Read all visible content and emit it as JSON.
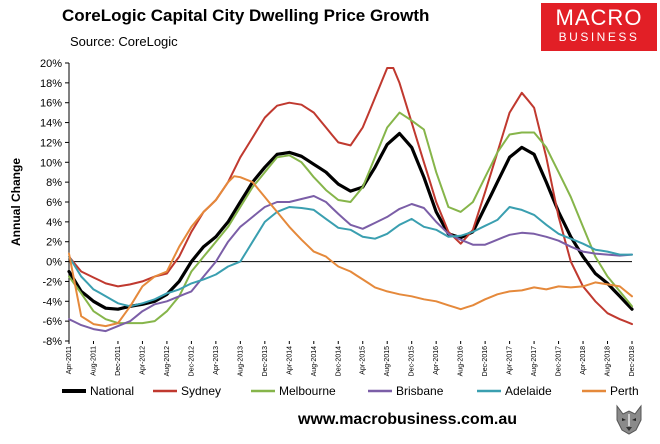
{
  "header": {
    "title": "CoreLogic Capital City Dwelling Price Growth",
    "subtitle": "Source: CoreLogic"
  },
  "logo": {
    "line1": "MACRO",
    "line2": "BUSINESS"
  },
  "footer": {
    "website": "www.macrobusiness.com.au"
  },
  "colors": {
    "National": "#000000",
    "Sydney": "#c0392f",
    "Melbourne": "#86b54a",
    "Brisbane": "#7b5ea7",
    "Adelaide": "#3a9fb0",
    "Perth": "#e5893b",
    "brand": "#e21f26"
  },
  "chart_data": {
    "type": "line",
    "title": "CoreLogic Capital City Dwelling Price Growth",
    "ylabel": "Annual Change",
    "xlabel": "",
    "ylim": [
      -8,
      20
    ],
    "yticks": [
      -8,
      -6,
      -4,
      -2,
      0,
      2,
      4,
      6,
      8,
      10,
      12,
      14,
      16,
      18,
      20
    ],
    "ytick_labels": [
      "-8%",
      "-6%",
      "-4%",
      "-2%",
      "0%",
      "2%",
      "4%",
      "6%",
      "8%",
      "10%",
      "12%",
      "14%",
      "16%",
      "18%",
      "20%"
    ],
    "x_start": "Apr-2011",
    "x_count": 93,
    "xticks": [
      {
        "i": 0,
        "label": "Apr-2011"
      },
      {
        "i": 4,
        "label": "Aug-2011"
      },
      {
        "i": 8,
        "label": "Dec-2011"
      },
      {
        "i": 12,
        "label": "Apr-2012"
      },
      {
        "i": 16,
        "label": "Aug-2012"
      },
      {
        "i": 20,
        "label": "Dec-2012"
      },
      {
        "i": 24,
        "label": "Apr-2013"
      },
      {
        "i": 28,
        "label": "Aug-2013"
      },
      {
        "i": 32,
        "label": "Dec-2013"
      },
      {
        "i": 36,
        "label": "Apr-2014"
      },
      {
        "i": 40,
        "label": "Aug-2014"
      },
      {
        "i": 44,
        "label": "Dec-2014"
      },
      {
        "i": 48,
        "label": "Apr-2015"
      },
      {
        "i": 52,
        "label": "Aug-2015"
      },
      {
        "i": 56,
        "label": "Dec-2015"
      },
      {
        "i": 60,
        "label": "Apr-2016"
      },
      {
        "i": 64,
        "label": "Aug-2016"
      },
      {
        "i": 68,
        "label": "Dec-2016"
      },
      {
        "i": 72,
        "label": "Apr-2017"
      },
      {
        "i": 76,
        "label": "Aug-2017"
      },
      {
        "i": 80,
        "label": "Dec-2017"
      },
      {
        "i": 84,
        "label": "Apr-2018"
      },
      {
        "i": 88,
        "label": "Aug-2018"
      },
      {
        "i": 92,
        "label": "Dec-2018"
      }
    ],
    "legend_position": "bottom",
    "series": [
      {
        "name": "National",
        "anchors": [
          [
            0,
            -1
          ],
          [
            2,
            -3
          ],
          [
            4,
            -4
          ],
          [
            6,
            -4.7
          ],
          [
            8,
            -4.8
          ],
          [
            10,
            -4.5
          ],
          [
            12,
            -4.3
          ],
          [
            14,
            -4
          ],
          [
            16,
            -3.3
          ],
          [
            18,
            -2
          ],
          [
            20,
            0
          ],
          [
            22,
            1.5
          ],
          [
            24,
            2.5
          ],
          [
            26,
            4
          ],
          [
            28,
            6
          ],
          [
            30,
            8
          ],
          [
            32,
            9.5
          ],
          [
            34,
            10.8
          ],
          [
            36,
            11
          ],
          [
            38,
            10.6
          ],
          [
            40,
            9.8
          ],
          [
            42,
            9
          ],
          [
            44,
            7.8
          ],
          [
            46,
            7.1
          ],
          [
            48,
            7.5
          ],
          [
            50,
            9.5
          ],
          [
            52,
            11.8
          ],
          [
            54,
            12.9
          ],
          [
            56,
            11.5
          ],
          [
            58,
            8.5
          ],
          [
            60,
            5
          ],
          [
            62,
            2.8
          ],
          [
            64,
            2.4
          ],
          [
            66,
            3
          ],
          [
            68,
            5.5
          ],
          [
            70,
            8
          ],
          [
            72,
            10.5
          ],
          [
            74,
            11.5
          ],
          [
            76,
            10.8
          ],
          [
            78,
            8
          ],
          [
            80,
            5
          ],
          [
            82,
            2.5
          ],
          [
            84,
            0.5
          ],
          [
            86,
            -1.2
          ],
          [
            88,
            -2.2
          ],
          [
            90,
            -3.5
          ],
          [
            92,
            -4.8
          ]
        ]
      },
      {
        "name": "Sydney",
        "anchors": [
          [
            0,
            0.5
          ],
          [
            2,
            -1
          ],
          [
            4,
            -1.6
          ],
          [
            6,
            -2.2
          ],
          [
            8,
            -2.5
          ],
          [
            10,
            -2.3
          ],
          [
            12,
            -2
          ],
          [
            14,
            -1.5
          ],
          [
            16,
            -1.2
          ],
          [
            18,
            0.5
          ],
          [
            20,
            3
          ],
          [
            22,
            5
          ],
          [
            24,
            6.2
          ],
          [
            26,
            8
          ],
          [
            28,
            10.5
          ],
          [
            30,
            12.5
          ],
          [
            32,
            14.5
          ],
          [
            34,
            15.7
          ],
          [
            36,
            16
          ],
          [
            38,
            15.8
          ],
          [
            40,
            15
          ],
          [
            42,
            13.5
          ],
          [
            44,
            12
          ],
          [
            46,
            11.7
          ],
          [
            48,
            13.5
          ],
          [
            50,
            16.5
          ],
          [
            52,
            19.5
          ],
          [
            53,
            19.5
          ],
          [
            54,
            18
          ],
          [
            56,
            14
          ],
          [
            58,
            10
          ],
          [
            60,
            6
          ],
          [
            62,
            3
          ],
          [
            64,
            1.8
          ],
          [
            66,
            3.2
          ],
          [
            68,
            7
          ],
          [
            70,
            11
          ],
          [
            72,
            15
          ],
          [
            74,
            17
          ],
          [
            76,
            15.5
          ],
          [
            78,
            10.5
          ],
          [
            80,
            4.5
          ],
          [
            82,
            0
          ],
          [
            84,
            -2.5
          ],
          [
            86,
            -4
          ],
          [
            88,
            -5.2
          ],
          [
            90,
            -5.8
          ],
          [
            92,
            -6.3
          ]
        ]
      },
      {
        "name": "Melbourne",
        "anchors": [
          [
            0,
            -1.5
          ],
          [
            2,
            -3.2
          ],
          [
            4,
            -5
          ],
          [
            6,
            -5.8
          ],
          [
            8,
            -6.2
          ],
          [
            10,
            -6.2
          ],
          [
            12,
            -6.2
          ],
          [
            14,
            -6
          ],
          [
            16,
            -5
          ],
          [
            18,
            -3.5
          ],
          [
            20,
            -1
          ],
          [
            22,
            0.5
          ],
          [
            24,
            2
          ],
          [
            26,
            3.5
          ],
          [
            28,
            5.5
          ],
          [
            30,
            7.5
          ],
          [
            32,
            9
          ],
          [
            34,
            10.5
          ],
          [
            36,
            10.7
          ],
          [
            38,
            10
          ],
          [
            40,
            8.5
          ],
          [
            42,
            7.2
          ],
          [
            44,
            6.2
          ],
          [
            46,
            6
          ],
          [
            48,
            7.5
          ],
          [
            50,
            10.5
          ],
          [
            52,
            13.5
          ],
          [
            54,
            15
          ],
          [
            56,
            14.2
          ],
          [
            58,
            13.3
          ],
          [
            60,
            9
          ],
          [
            62,
            5.5
          ],
          [
            64,
            5
          ],
          [
            66,
            6
          ],
          [
            68,
            8.5
          ],
          [
            70,
            11
          ],
          [
            72,
            12.8
          ],
          [
            74,
            13
          ],
          [
            76,
            13
          ],
          [
            78,
            11.5
          ],
          [
            80,
            9
          ],
          [
            82,
            6.5
          ],
          [
            84,
            3.5
          ],
          [
            86,
            0.5
          ],
          [
            88,
            -1.5
          ],
          [
            90,
            -3
          ],
          [
            92,
            -4.5
          ]
        ]
      },
      {
        "name": "Brisbane",
        "anchors": [
          [
            0,
            -5.8
          ],
          [
            2,
            -6.4
          ],
          [
            4,
            -6.8
          ],
          [
            6,
            -7
          ],
          [
            8,
            -6.5
          ],
          [
            10,
            -6
          ],
          [
            12,
            -5
          ],
          [
            14,
            -4.3
          ],
          [
            16,
            -4
          ],
          [
            18,
            -3.5
          ],
          [
            20,
            -3
          ],
          [
            22,
            -1.5
          ],
          [
            24,
            0
          ],
          [
            26,
            2
          ],
          [
            28,
            3.5
          ],
          [
            30,
            4.5
          ],
          [
            32,
            5.5
          ],
          [
            34,
            6
          ],
          [
            36,
            6
          ],
          [
            38,
            6.3
          ],
          [
            40,
            6.6
          ],
          [
            42,
            6
          ],
          [
            44,
            4.8
          ],
          [
            46,
            3.7
          ],
          [
            48,
            3.3
          ],
          [
            50,
            3.9
          ],
          [
            52,
            4.5
          ],
          [
            54,
            5.3
          ],
          [
            56,
            5.8
          ],
          [
            58,
            5.4
          ],
          [
            60,
            4
          ],
          [
            62,
            2.8
          ],
          [
            64,
            2.2
          ],
          [
            66,
            1.7
          ],
          [
            68,
            1.7
          ],
          [
            70,
            2.2
          ],
          [
            72,
            2.7
          ],
          [
            74,
            2.9
          ],
          [
            76,
            2.8
          ],
          [
            78,
            2.5
          ],
          [
            80,
            2.1
          ],
          [
            82,
            1.5
          ],
          [
            84,
            1
          ],
          [
            86,
            0.8
          ],
          [
            88,
            0.7
          ],
          [
            90,
            0.6
          ],
          [
            92,
            0.7
          ]
        ]
      },
      {
        "name": "Adelaide",
        "anchors": [
          [
            0,
            0.5
          ],
          [
            2,
            -1.5
          ],
          [
            4,
            -2.8
          ],
          [
            6,
            -3.5
          ],
          [
            8,
            -4.2
          ],
          [
            10,
            -4.5
          ],
          [
            12,
            -4.2
          ],
          [
            14,
            -3.8
          ],
          [
            16,
            -3.2
          ],
          [
            18,
            -2.8
          ],
          [
            20,
            -2.2
          ],
          [
            22,
            -1.8
          ],
          [
            24,
            -1.3
          ],
          [
            26,
            -0.5
          ],
          [
            28,
            0
          ],
          [
            30,
            2
          ],
          [
            32,
            4
          ],
          [
            34,
            5
          ],
          [
            36,
            5.5
          ],
          [
            38,
            5.4
          ],
          [
            40,
            5.2
          ],
          [
            42,
            4.3
          ],
          [
            44,
            3.4
          ],
          [
            46,
            3.2
          ],
          [
            48,
            2.5
          ],
          [
            50,
            2.3
          ],
          [
            52,
            2.8
          ],
          [
            54,
            3.7
          ],
          [
            56,
            4.3
          ],
          [
            58,
            3.5
          ],
          [
            60,
            3.2
          ],
          [
            62,
            2.5
          ],
          [
            64,
            2.6
          ],
          [
            66,
            3
          ],
          [
            68,
            3.6
          ],
          [
            70,
            4.2
          ],
          [
            72,
            5.5
          ],
          [
            74,
            5.2
          ],
          [
            76,
            4.7
          ],
          [
            78,
            3.7
          ],
          [
            80,
            2.8
          ],
          [
            82,
            2.3
          ],
          [
            84,
            1.8
          ],
          [
            86,
            1.2
          ],
          [
            88,
            1
          ],
          [
            90,
            0.7
          ],
          [
            92,
            0.7
          ]
        ]
      },
      {
        "name": "Perth",
        "anchors": [
          [
            0,
            0.8
          ],
          [
            2,
            -5.5
          ],
          [
            4,
            -6.3
          ],
          [
            6,
            -6.5
          ],
          [
            8,
            -6.2
          ],
          [
            10,
            -4.5
          ],
          [
            12,
            -2.5
          ],
          [
            14,
            -1.5
          ],
          [
            16,
            -1
          ],
          [
            18,
            1.5
          ],
          [
            20,
            3.5
          ],
          [
            22,
            5
          ],
          [
            24,
            6.2
          ],
          [
            26,
            8
          ],
          [
            27,
            8.6
          ],
          [
            28,
            8.5
          ],
          [
            30,
            8
          ],
          [
            32,
            6.5
          ],
          [
            34,
            5
          ],
          [
            36,
            3.5
          ],
          [
            38,
            2.2
          ],
          [
            40,
            1
          ],
          [
            42,
            0.5
          ],
          [
            44,
            -0.5
          ],
          [
            46,
            -1
          ],
          [
            48,
            -1.8
          ],
          [
            50,
            -2.6
          ],
          [
            52,
            -3
          ],
          [
            54,
            -3.3
          ],
          [
            56,
            -3.5
          ],
          [
            58,
            -3.8
          ],
          [
            60,
            -4
          ],
          [
            62,
            -4.4
          ],
          [
            64,
            -4.8
          ],
          [
            66,
            -4.4
          ],
          [
            68,
            -3.8
          ],
          [
            70,
            -3.3
          ],
          [
            72,
            -3
          ],
          [
            74,
            -2.9
          ],
          [
            76,
            -2.6
          ],
          [
            78,
            -2.8
          ],
          [
            80,
            -2.5
          ],
          [
            82,
            -2.6
          ],
          [
            84,
            -2.5
          ],
          [
            86,
            -2.1
          ],
          [
            88,
            -2.3
          ],
          [
            90,
            -2.5
          ],
          [
            92,
            -3.5
          ]
        ]
      }
    ]
  }
}
